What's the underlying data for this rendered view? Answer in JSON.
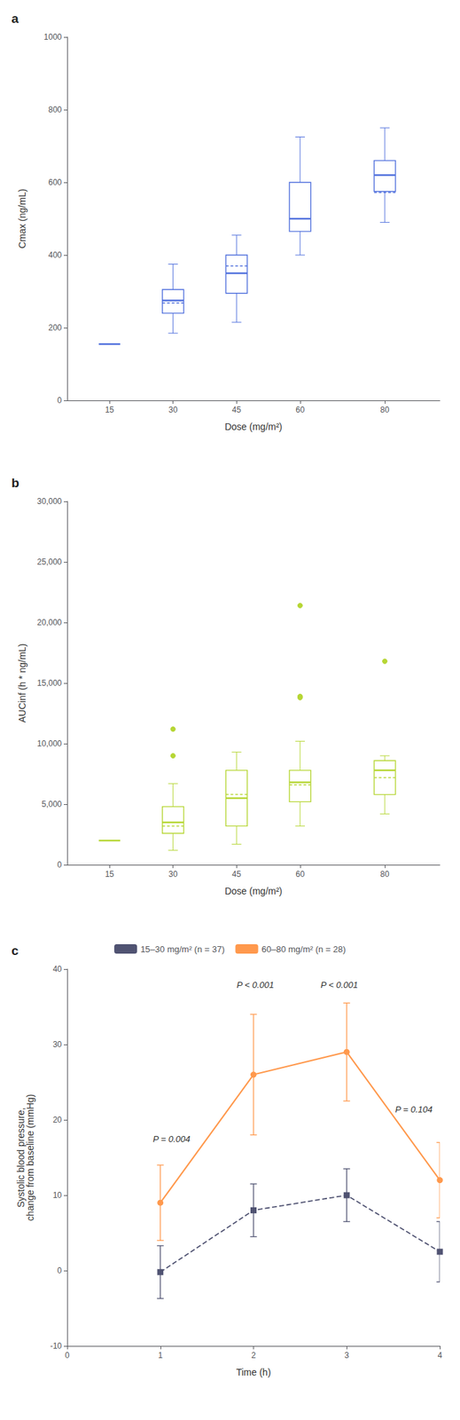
{
  "chart_data": [
    {
      "type": "box",
      "title": "a",
      "xlabel": "Dose (mg/m²)",
      "ylabel": "Cmax (ng/mL)",
      "x": [
        15,
        30,
        45,
        60,
        80
      ],
      "xlim": [
        5,
        93
      ],
      "xticks": [
        15,
        30,
        45,
        60,
        80
      ],
      "ylim": [
        0,
        1000
      ],
      "yticks": [
        0,
        200,
        400,
        600,
        800,
        1000
      ],
      "grid": false,
      "boxes": [
        {
          "median": 155,
          "q1": 155,
          "q3": 155,
          "whisker_low": 155,
          "whisker_high": 155,
          "mean": 155,
          "outliers": []
        },
        {
          "median": 275,
          "q1": 240,
          "q3": 305,
          "whisker_low": 185,
          "whisker_high": 375,
          "mean": 268,
          "outliers": []
        },
        {
          "median": 350,
          "q1": 295,
          "q3": 400,
          "whisker_low": 215,
          "whisker_high": 455,
          "mean": 370,
          "outliers": []
        },
        {
          "median": 500,
          "q1": 465,
          "q3": 600,
          "whisker_low": 400,
          "whisker_high": 725,
          "mean": 500,
          "outliers": []
        },
        {
          "median": 620,
          "q1": 575,
          "q3": 660,
          "whisker_low": 490,
          "whisker_high": 750,
          "mean": 572,
          "outliers": []
        }
      ]
    },
    {
      "type": "box",
      "title": "b",
      "xlabel": "Dose (mg/m²)",
      "ylabel": "AUCinf (h * ng/mL)",
      "x": [
        15,
        30,
        45,
        60,
        80
      ],
      "xlim": [
        5,
        93
      ],
      "xticks": [
        15,
        30,
        45,
        60,
        80
      ],
      "ylim": [
        0,
        30000
      ],
      "yticks": [
        0,
        {
          "value": 5000,
          "label": "5,000"
        },
        {
          "value": 10000,
          "label": "10,000"
        },
        {
          "value": 15000,
          "label": "15,000"
        },
        {
          "value": 20000,
          "label": "20,000"
        },
        {
          "value": 25000,
          "label": "25,000"
        },
        {
          "value": 30000,
          "label": "30,000"
        }
      ],
      "grid": false,
      "boxes": [
        {
          "median": 2000,
          "q1": 2000,
          "q3": 2000,
          "whisker_low": 2000,
          "whisker_high": 2000,
          "mean": 2000,
          "outliers": []
        },
        {
          "median": 3500,
          "q1": 2600,
          "q3": 4800,
          "whisker_low": 1200,
          "whisker_high": 6700,
          "mean": 3200,
          "outliers": [
            9000,
            11200
          ]
        },
        {
          "median": 5500,
          "q1": 3200,
          "q3": 7800,
          "whisker_low": 1700,
          "whisker_high": 9300,
          "mean": 5800,
          "outliers": []
        },
        {
          "median": 6800,
          "q1": 5200,
          "q3": 7800,
          "whisker_low": 3200,
          "whisker_high": 10200,
          "mean": 6600,
          "outliers": [
            13800,
            13900,
            21400
          ]
        },
        {
          "median": 7800,
          "q1": 5800,
          "q3": 8600,
          "whisker_low": 4200,
          "whisker_high": 9000,
          "mean": 7200,
          "outliers": [
            16800
          ]
        }
      ]
    },
    {
      "type": "line",
      "title": "c",
      "xlabel": "Time (h)",
      "ylabel": "Systolic blood pressure,\nchange from baseline (mmHg)",
      "x": [
        1,
        2,
        3,
        4
      ],
      "xlim": [
        0,
        4
      ],
      "xticks": [
        0,
        1,
        2,
        3,
        4
      ],
      "ylim": [
        -10,
        40
      ],
      "yticks": [
        -10,
        0,
        10,
        20,
        30,
        40
      ],
      "grid": false,
      "legend": "top",
      "series": [
        {
          "name": "15–30 mg/m² (n = 37)",
          "values": [
            -0.2,
            8.0,
            10.0,
            2.5
          ],
          "yerr": [
            3.5,
            3.5,
            3.5,
            4.0
          ],
          "marker": "square",
          "line_style": "dashed"
        },
        {
          "name": "60–80 mg/m² (n = 28)",
          "values": [
            9.0,
            26.0,
            29.0,
            12.0
          ],
          "yerr": [
            5.0,
            8.0,
            6.5,
            5.0
          ],
          "marker": "circle",
          "line_style": "solid"
        }
      ],
      "annotations": [
        {
          "x": 0.92,
          "y": 18,
          "text": "P = 0.004"
        },
        {
          "x": 1.82,
          "y": 38.5,
          "text": "P < 0.001"
        },
        {
          "x": 2.72,
          "y": 38.5,
          "text": "P < 0.001"
        },
        {
          "x": 3.52,
          "y": 22,
          "text": "P = 0.104"
        }
      ]
    }
  ]
}
